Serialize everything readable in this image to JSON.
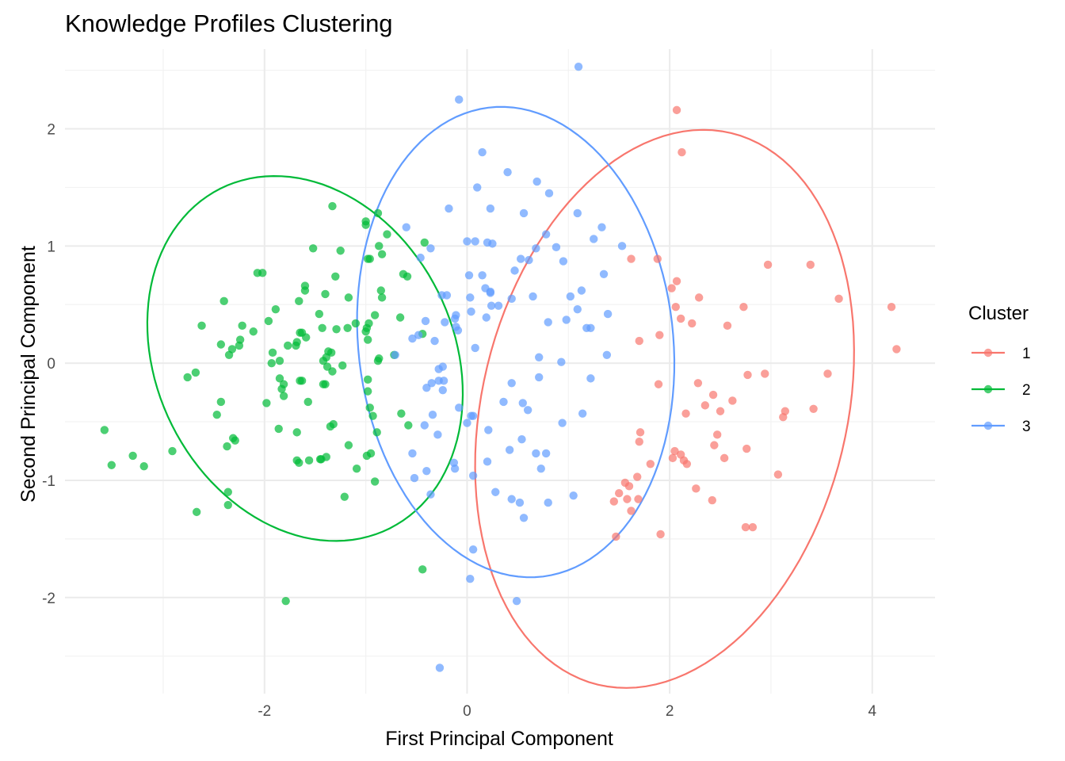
{
  "chart_data": {
    "type": "scatter",
    "title": "Knowledge Profiles Clustering",
    "xlabel": "First Principal Component",
    "ylabel": "Second Principal Component",
    "xlim": [
      -3.97,
      4.62
    ],
    "ylim": [
      -2.82,
      2.68
    ],
    "x_ticks": [
      -2,
      0,
      2,
      4
    ],
    "x_tick_labels": [
      "-2",
      "0",
      "2",
      "4"
    ],
    "y_ticks": [
      -2,
      -1,
      0,
      1,
      2
    ],
    "y_tick_labels": [
      "-2",
      "-1",
      "0",
      "1",
      "2"
    ],
    "grid": true,
    "legend": {
      "title": "Cluster",
      "position": "right"
    },
    "series": [
      {
        "name": "1",
        "color": "#F8766D",
        "ellipse": {
          "cx": 1.95,
          "cy": -0.39,
          "rx": 1.78,
          "ry": 2.45,
          "rotation_deg": -20
        },
        "points": [
          [
            2.07,
            2.16
          ],
          [
            2.12,
            1.8
          ],
          [
            1.62,
            0.89
          ],
          [
            1.88,
            0.89
          ],
          [
            2.07,
            0.7
          ],
          [
            2.02,
            0.64
          ],
          [
            2.06,
            0.48
          ],
          [
            2.29,
            0.56
          ],
          [
            2.73,
            0.48
          ],
          [
            2.97,
            0.84
          ],
          [
            3.39,
            0.84
          ],
          [
            3.67,
            0.55
          ],
          [
            4.19,
            0.48
          ],
          [
            4.24,
            0.12
          ],
          [
            1.7,
            0.19
          ],
          [
            1.9,
            0.24
          ],
          [
            2.11,
            0.38
          ],
          [
            2.22,
            0.34
          ],
          [
            2.57,
            0.32
          ],
          [
            2.28,
            -0.17
          ],
          [
            2.43,
            -0.27
          ],
          [
            2.35,
            -0.36
          ],
          [
            2.5,
            -0.41
          ],
          [
            2.62,
            -0.32
          ],
          [
            2.77,
            -0.1
          ],
          [
            2.94,
            -0.09
          ],
          [
            3.56,
            -0.09
          ],
          [
            1.89,
            -0.18
          ],
          [
            2.16,
            -0.43
          ],
          [
            3.14,
            -0.41
          ],
          [
            3.12,
            -0.46
          ],
          [
            3.42,
            -0.39
          ],
          [
            1.71,
            -0.59
          ],
          [
            1.7,
            -0.67
          ],
          [
            2.47,
            -0.61
          ],
          [
            2.44,
            -0.7
          ],
          [
            2.54,
            -0.81
          ],
          [
            2.76,
            -0.73
          ],
          [
            2.05,
            -0.75
          ],
          [
            2.11,
            -0.78
          ],
          [
            2.03,
            -0.81
          ],
          [
            2.14,
            -0.83
          ],
          [
            2.17,
            -0.86
          ],
          [
            1.81,
            -0.86
          ],
          [
            1.56,
            -1.02
          ],
          [
            1.6,
            -1.05
          ],
          [
            1.68,
            -0.97
          ],
          [
            1.5,
            -1.11
          ],
          [
            1.58,
            -1.16
          ],
          [
            1.45,
            -1.18
          ],
          [
            1.62,
            -1.26
          ],
          [
            1.69,
            -1.16
          ],
          [
            2.26,
            -1.07
          ],
          [
            2.42,
            -1.17
          ],
          [
            2.75,
            -1.4
          ],
          [
            2.82,
            -1.4
          ],
          [
            3.07,
            -0.95
          ],
          [
            1.47,
            -1.48
          ],
          [
            1.91,
            -1.46
          ]
        ]
      },
      {
        "name": "2",
        "color": "#00BA38",
        "ellipse": {
          "cx": -1.6,
          "cy": 0.04,
          "rx": 1.4,
          "ry": 1.7,
          "rotation_deg": 45
        },
        "points": [
          [
            -1.33,
            1.34
          ],
          [
            -1.0,
            1.21
          ],
          [
            -1.0,
            1.18
          ],
          [
            -0.88,
            1.28
          ],
          [
            -0.79,
            1.1
          ],
          [
            -0.87,
            1.0
          ],
          [
            -0.84,
            0.93
          ],
          [
            -0.98,
            0.89
          ],
          [
            -0.96,
            0.89
          ],
          [
            -1.25,
            0.96
          ],
          [
            -1.52,
            0.98
          ],
          [
            -0.42,
            1.03
          ],
          [
            -2.07,
            0.77
          ],
          [
            -2.02,
            0.77
          ],
          [
            -1.6,
            0.66
          ],
          [
            -1.6,
            0.62
          ],
          [
            -1.3,
            0.74
          ],
          [
            -1.66,
            0.53
          ],
          [
            -1.4,
            0.59
          ],
          [
            -1.17,
            0.56
          ],
          [
            -0.85,
            0.62
          ],
          [
            -0.84,
            0.56
          ],
          [
            -0.63,
            0.76
          ],
          [
            -0.59,
            0.74
          ],
          [
            -2.4,
            0.53
          ],
          [
            -1.89,
            0.46
          ],
          [
            -1.46,
            0.42
          ],
          [
            -0.91,
            0.41
          ],
          [
            -0.66,
            0.39
          ],
          [
            -2.62,
            0.32
          ],
          [
            -2.22,
            0.32
          ],
          [
            -2.11,
            0.27
          ],
          [
            -1.96,
            0.36
          ],
          [
            -1.65,
            0.26
          ],
          [
            -1.63,
            0.26
          ],
          [
            -1.59,
            0.22
          ],
          [
            -1.43,
            0.3
          ],
          [
            -1.29,
            0.29
          ],
          [
            -1.18,
            0.3
          ],
          [
            -1.1,
            0.34
          ],
          [
            -0.99,
            0.3
          ],
          [
            -0.97,
            0.34
          ],
          [
            -1.0,
            0.27
          ],
          [
            -0.98,
            0.2
          ],
          [
            -0.44,
            0.25
          ],
          [
            -2.24,
            0.2
          ],
          [
            -2.43,
            0.16
          ],
          [
            -2.32,
            0.12
          ],
          [
            -2.35,
            0.07
          ],
          [
            -2.25,
            0.15
          ],
          [
            -1.77,
            0.15
          ],
          [
            -1.85,
            0.02
          ],
          [
            -1.93,
            0.0
          ],
          [
            -1.92,
            0.09
          ],
          [
            -1.69,
            0.15
          ],
          [
            -1.68,
            0.18
          ],
          [
            -1.37,
            0.1
          ],
          [
            -1.34,
            0.09
          ],
          [
            -1.39,
            0.05
          ],
          [
            -1.42,
            0.02
          ],
          [
            -1.23,
            -0.02
          ],
          [
            -0.88,
            0.02
          ],
          [
            -0.87,
            0.04
          ],
          [
            -0.72,
            0.07
          ],
          [
            -1.38,
            -0.03
          ],
          [
            -1.33,
            -0.07
          ],
          [
            -0.98,
            -0.14
          ],
          [
            -0.98,
            -0.24
          ],
          [
            -2.76,
            -0.12
          ],
          [
            -2.68,
            -0.08
          ],
          [
            -1.85,
            -0.13
          ],
          [
            -1.81,
            -0.18
          ],
          [
            -1.65,
            -0.15
          ],
          [
            -1.63,
            -0.15
          ],
          [
            -1.42,
            -0.18
          ],
          [
            -1.4,
            -0.18
          ],
          [
            -2.43,
            -0.33
          ],
          [
            -1.98,
            -0.34
          ],
          [
            -1.83,
            -0.22
          ],
          [
            -1.81,
            -0.28
          ],
          [
            -1.57,
            -0.33
          ],
          [
            -0.96,
            -0.38
          ],
          [
            -2.47,
            -0.44
          ],
          [
            -1.32,
            -0.52
          ],
          [
            -0.93,
            -0.45
          ],
          [
            -0.65,
            -0.43
          ],
          [
            -0.58,
            -0.53
          ],
          [
            -2.37,
            -0.71
          ],
          [
            -2.31,
            -0.64
          ],
          [
            -2.29,
            -0.66
          ],
          [
            -1.86,
            -0.56
          ],
          [
            -1.68,
            -0.59
          ],
          [
            -1.39,
            -0.8
          ],
          [
            -1.35,
            -0.54
          ],
          [
            -1.17,
            -0.7
          ],
          [
            -0.89,
            -0.59
          ],
          [
            -0.99,
            -0.79
          ],
          [
            -0.95,
            -0.77
          ],
          [
            -1.68,
            -0.83
          ],
          [
            -1.66,
            -0.85
          ],
          [
            -1.56,
            -0.83
          ],
          [
            -1.44,
            -0.82
          ],
          [
            -1.45,
            -0.82
          ],
          [
            -1.09,
            -0.9
          ],
          [
            -3.58,
            -0.57
          ],
          [
            -3.51,
            -0.87
          ],
          [
            -3.3,
            -0.79
          ],
          [
            -3.19,
            -0.88
          ],
          [
            -2.91,
            -0.75
          ],
          [
            -2.36,
            -1.1
          ],
          [
            -2.36,
            -1.21
          ],
          [
            -2.67,
            -1.27
          ],
          [
            -1.21,
            -1.14
          ],
          [
            -0.91,
            -1.01
          ],
          [
            -0.44,
            -1.76
          ],
          [
            -1.79,
            -2.03
          ]
        ]
      },
      {
        "name": "3",
        "color": "#619CFF",
        "ellipse": {
          "cx": 0.48,
          "cy": 0.18,
          "rx": 2.02,
          "ry": 1.55,
          "rotation_deg": -80
        },
        "points": [
          [
            1.1,
            2.53
          ],
          [
            -0.08,
            2.25
          ],
          [
            0.15,
            1.8
          ],
          [
            0.4,
            1.63
          ],
          [
            0.1,
            1.5
          ],
          [
            0.69,
            1.55
          ],
          [
            0.81,
            1.45
          ],
          [
            -0.18,
            1.32
          ],
          [
            0.23,
            1.32
          ],
          [
            0.56,
            1.28
          ],
          [
            1.09,
            1.28
          ],
          [
            -0.6,
            1.16
          ],
          [
            0.78,
            1.1
          ],
          [
            1.33,
            1.16
          ],
          [
            1.25,
            1.06
          ],
          [
            0.0,
            1.04
          ],
          [
            0.08,
            1.04
          ],
          [
            0.2,
            1.03
          ],
          [
            0.25,
            1.02
          ],
          [
            0.53,
            0.89
          ],
          [
            0.61,
            0.88
          ],
          [
            0.88,
            0.99
          ],
          [
            0.68,
            0.98
          ],
          [
            1.53,
            1.0
          ],
          [
            -0.36,
            0.98
          ],
          [
            -0.46,
            0.9
          ],
          [
            0.47,
            0.79
          ],
          [
            0.95,
            0.87
          ],
          [
            0.15,
            0.75
          ],
          [
            0.02,
            0.75
          ],
          [
            0.18,
            0.64
          ],
          [
            0.23,
            0.6
          ],
          [
            0.23,
            0.61
          ],
          [
            1.35,
            0.76
          ],
          [
            -0.25,
            0.58
          ],
          [
            -0.2,
            0.58
          ],
          [
            0.03,
            0.56
          ],
          [
            0.24,
            0.49
          ],
          [
            0.31,
            0.49
          ],
          [
            0.44,
            0.55
          ],
          [
            0.65,
            0.57
          ],
          [
            1.02,
            0.57
          ],
          [
            1.13,
            0.62
          ],
          [
            -0.41,
            0.36
          ],
          [
            -0.12,
            0.38
          ],
          [
            -0.11,
            0.31
          ],
          [
            -0.11,
            0.41
          ],
          [
            0.04,
            0.44
          ],
          [
            0.8,
            0.35
          ],
          [
            0.98,
            0.37
          ],
          [
            1.09,
            0.46
          ],
          [
            1.39,
            0.42
          ],
          [
            -0.54,
            0.21
          ],
          [
            -0.48,
            0.24
          ],
          [
            -0.32,
            0.19
          ],
          [
            -0.22,
            0.35
          ],
          [
            -0.09,
            0.28
          ],
          [
            0.08,
            0.13
          ],
          [
            0.19,
            0.39
          ],
          [
            1.18,
            0.3
          ],
          [
            1.22,
            0.3
          ],
          [
            1.38,
            0.07
          ],
          [
            -0.71,
            0.07
          ],
          [
            -0.24,
            -0.03
          ],
          [
            -0.28,
            -0.05
          ],
          [
            -0.35,
            -0.17
          ],
          [
            -0.28,
            -0.15
          ],
          [
            -0.23,
            -0.15
          ],
          [
            -0.4,
            -0.21
          ],
          [
            -0.24,
            -0.23
          ],
          [
            0.44,
            -0.17
          ],
          [
            0.71,
            0.05
          ],
          [
            0.93,
            0.01
          ],
          [
            0.71,
            -0.12
          ],
          [
            1.22,
            -0.13
          ],
          [
            0.36,
            -0.33
          ],
          [
            0.55,
            -0.34
          ],
          [
            0.04,
            -0.45
          ],
          [
            0.06,
            -0.45
          ],
          [
            -0.08,
            -0.38
          ],
          [
            -0.34,
            -0.44
          ],
          [
            -0.42,
            -0.53
          ],
          [
            0.6,
            -0.4
          ],
          [
            0.94,
            -0.51
          ],
          [
            1.14,
            -0.43
          ],
          [
            -0.29,
            -0.61
          ],
          [
            0.0,
            -0.51
          ],
          [
            0.21,
            -0.57
          ],
          [
            0.54,
            -0.65
          ],
          [
            0.42,
            -0.74
          ],
          [
            0.68,
            -0.77
          ],
          [
            0.78,
            -0.77
          ],
          [
            -0.54,
            -0.77
          ],
          [
            0.2,
            -0.84
          ],
          [
            -0.4,
            -0.92
          ],
          [
            -0.13,
            -0.85
          ],
          [
            -0.12,
            -0.9
          ],
          [
            0.06,
            -0.96
          ],
          [
            0.73,
            -0.9
          ],
          [
            -0.52,
            -0.98
          ],
          [
            -0.36,
            -1.12
          ],
          [
            0.28,
            -1.1
          ],
          [
            0.44,
            -1.16
          ],
          [
            0.52,
            -1.19
          ],
          [
            0.8,
            -1.19
          ],
          [
            1.05,
            -1.13
          ],
          [
            0.56,
            -1.32
          ],
          [
            0.06,
            -1.59
          ],
          [
            0.03,
            -1.84
          ],
          [
            0.49,
            -2.03
          ],
          [
            -0.27,
            -2.6
          ]
        ]
      }
    ]
  }
}
